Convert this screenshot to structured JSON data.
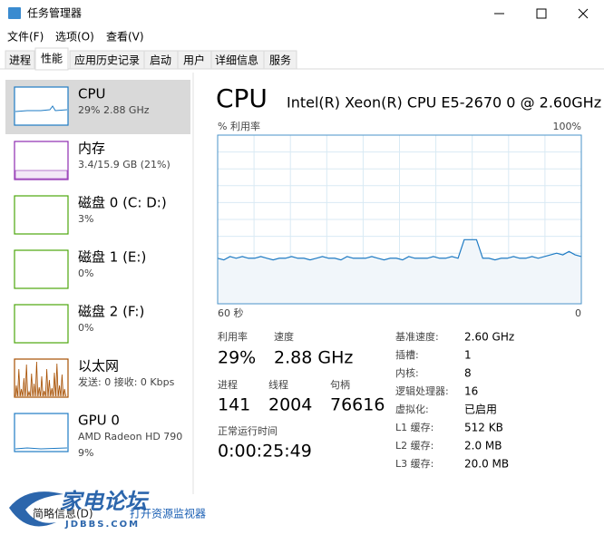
{
  "window": {
    "title": "任务管理器"
  },
  "menu": [
    "文件(F)",
    "选项(O)",
    "查看(V)"
  ],
  "tabs": [
    "进程",
    "性能",
    "应用历史记录",
    "启动",
    "用户",
    "详细信息",
    "服务"
  ],
  "sidebar": [
    {
      "title": "CPU",
      "detail": "29% 2.88 GHz"
    },
    {
      "title": "内存",
      "detail": "3.4/15.9 GB (21%)"
    },
    {
      "title": "磁盘 0 (C: D:)",
      "detail": "3%"
    },
    {
      "title": "磁盘 1 (E:)",
      "detail": "0%"
    },
    {
      "title": "磁盘 2 (F:)",
      "detail": "0%"
    },
    {
      "title": "以太网",
      "detail": "发送: 0 接收: 0 Kbps"
    },
    {
      "title": "GPU 0",
      "detail": "AMD Radeon HD 790",
      "detail2": "9%"
    }
  ],
  "main": {
    "title": "CPU",
    "model": "Intel(R) Xeon(R) CPU E5-2670 0 @ 2.60GHz",
    "graph_label": "% 利用率",
    "graph_max": "100%",
    "graph_time": "60 秒",
    "graph_zero": "0",
    "ylim": [
      0,
      100
    ],
    "values": [
      27,
      26,
      28,
      27,
      28,
      27,
      27,
      28,
      27,
      26,
      27,
      27,
      28,
      27,
      27,
      26,
      27,
      28,
      27,
      27,
      26,
      28,
      27,
      27,
      27,
      28,
      27,
      26,
      27,
      27,
      26,
      28,
      27,
      27,
      27,
      28,
      27,
      27,
      28,
      27,
      38,
      38,
      38,
      27,
      27,
      26,
      27,
      27,
      28,
      27,
      27,
      28,
      27,
      28,
      29,
      30,
      29,
      31,
      29,
      28
    ]
  },
  "stats": [
    {
      "label": "利用率",
      "value": "29%"
    },
    {
      "label": "速度",
      "value": "2.88 GHz"
    },
    {
      "label": "进程",
      "value": "141"
    },
    {
      "label": "线程",
      "value": "2004"
    },
    {
      "label": "句柄",
      "value": "76616"
    }
  ],
  "uptime": {
    "label": "正常运行时间",
    "value": "0:00:25:49"
  },
  "specs": [
    {
      "label": "基准速度:",
      "value": "2.60 GHz"
    },
    {
      "label": "插槽:",
      "value": "1"
    },
    {
      "label": "内核:",
      "value": "8"
    },
    {
      "label": "逻辑处理器:",
      "value": "16"
    },
    {
      "label": "虚拟化:",
      "value": "已启用"
    },
    {
      "label": "L1 缓存:",
      "value": "512 KB"
    },
    {
      "label": "L2 缓存:",
      "value": "2.0 MB"
    },
    {
      "label": "L3 缓存:",
      "value": "20.0 MB"
    }
  ],
  "footer": {
    "summary": "简略信息(D)",
    "monitor": "打开资源监视器"
  },
  "watermark": {
    "name": "家电论坛",
    "site": "JDBBS.COM"
  }
}
